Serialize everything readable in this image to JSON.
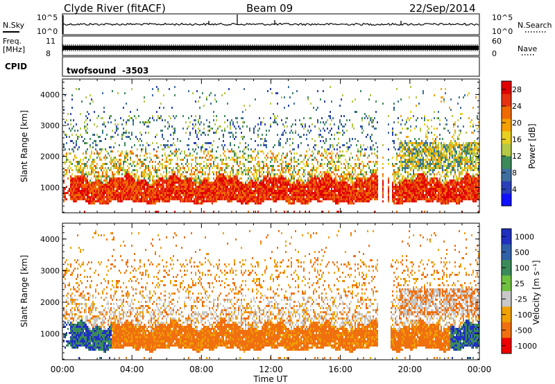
{
  "header": {
    "station": "Clyde River (fitACF)",
    "beam": "Beam 09",
    "date": "22/Sep/2014"
  },
  "sky_panel": {
    "left_label": "N.Sky",
    "left_ticks": [
      "10^5",
      "10^0"
    ],
    "right_ticks": [
      "10^5",
      "10^0"
    ],
    "right_label": "N.Search"
  },
  "freq_panel": {
    "left_label_1": "Freq.",
    "left_label_2": "[MHz]",
    "left_ticks": [
      "11",
      "8"
    ],
    "right_ticks": [
      "60",
      "0"
    ],
    "right_label": "Nave"
  },
  "cpid_panel": {
    "label": "CPID",
    "program": "twofsound",
    "code": "-3503"
  },
  "colors": {
    "background": "#ffffff",
    "axis": "#000000"
  },
  "chart_data": [
    {
      "type": "heatmap",
      "name": "power",
      "ylabel": "Slant Range [km]",
      "yticks": [
        1000,
        2000,
        3000,
        4000
      ],
      "ylim": [
        180,
        4500
      ],
      "x": [
        "00:00",
        "04:00",
        "08:00",
        "12:00",
        "16:00",
        "20:00",
        "00:00"
      ],
      "xlim_hours": [
        0,
        24
      ],
      "colorbar": {
        "label": "Power [dB]",
        "ticks": [
          "4",
          "8",
          "12",
          "16",
          "20",
          "24",
          "28"
        ],
        "range": [
          0,
          30
        ],
        "colors": [
          "#1010ff",
          "#2a40b8",
          "#3f6fa0",
          "#3c8a5a",
          "#b5c845",
          "#e8d020",
          "#f5a000",
          "#f06a00",
          "#e63010",
          "#e00000"
        ]
      },
      "echo_band": {
        "core_km": [
          700,
          1300
        ],
        "upper_km": [
          1300,
          2600
        ],
        "sparse_km": [
          2600,
          4200
        ]
      }
    },
    {
      "type": "heatmap",
      "name": "velocity",
      "ylabel": "Slant Range [km]",
      "yticks": [
        1000,
        2000,
        3000,
        4000
      ],
      "ylim": [
        180,
        4500
      ],
      "x": [
        "00:00",
        "04:00",
        "08:00",
        "12:00",
        "16:00",
        "20:00",
        "00:00"
      ],
      "xlim_hours": [
        0,
        24
      ],
      "xlabel": "Time UT",
      "colorbar": {
        "label": "Velocity [m s⁻¹]",
        "ticks": [
          "1000",
          "500",
          "100",
          "25",
          "-25",
          "-100",
          "-500",
          "-1000"
        ],
        "colors": [
          "#2030c0",
          "#3060a8",
          "#3a8a5a",
          "#70c040",
          "#c8c8c8",
          "#f0a000",
          "#f07010",
          "#ee0000"
        ]
      }
    }
  ]
}
